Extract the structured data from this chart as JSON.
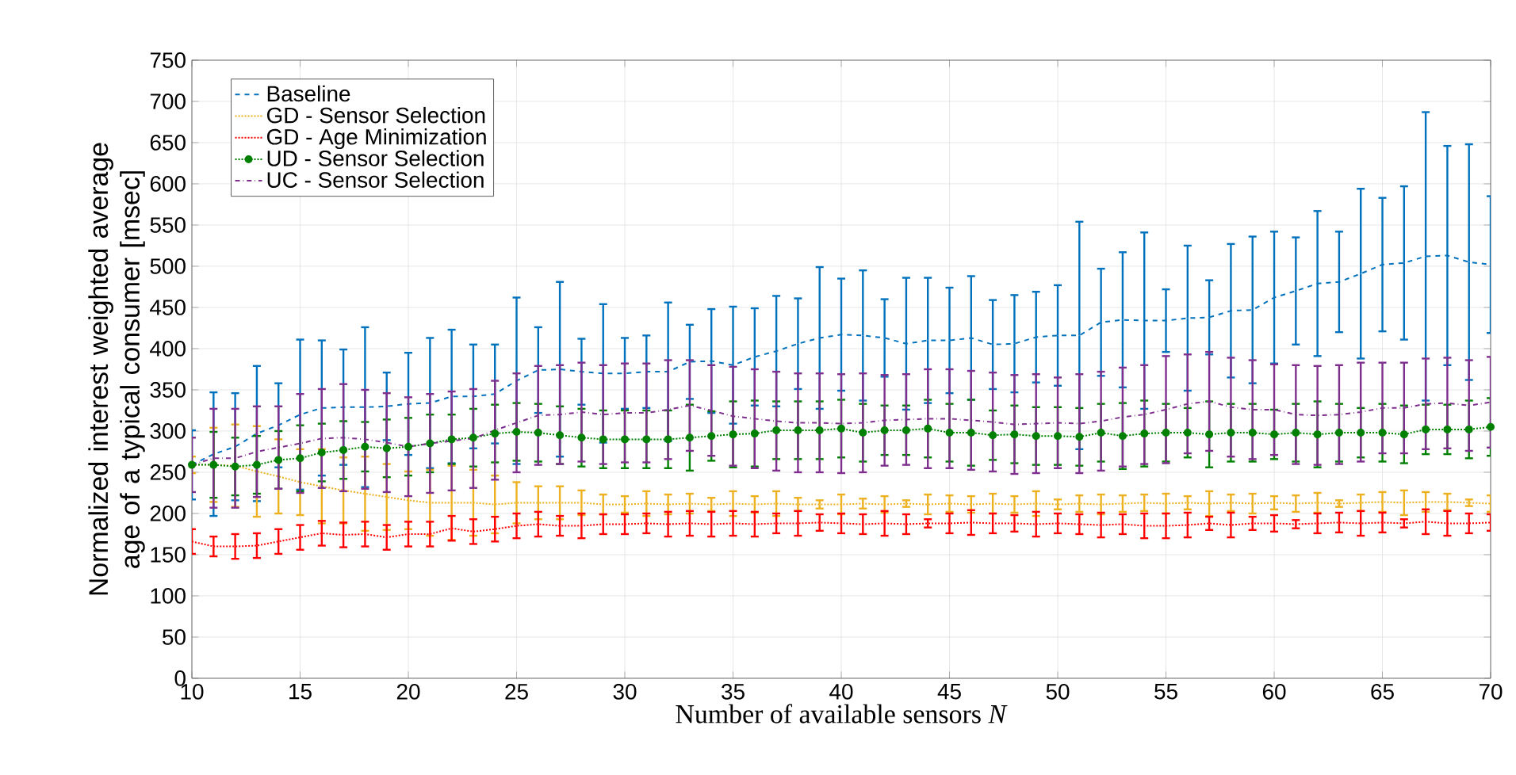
{
  "chart_data": {
    "type": "line",
    "xlabel": "Number of available sensors *N*",
    "ylabel": "Normalized interest weighted average age of a typical consumer [msec]",
    "x": [
      10,
      11,
      12,
      13,
      14,
      15,
      16,
      17,
      18,
      19,
      20,
      21,
      22,
      23,
      24,
      25,
      26,
      27,
      28,
      29,
      30,
      31,
      32,
      33,
      34,
      35,
      36,
      37,
      38,
      39,
      40,
      41,
      42,
      43,
      44,
      45,
      46,
      47,
      48,
      49,
      50,
      51,
      52,
      53,
      54,
      55,
      56,
      57,
      58,
      59,
      60,
      61,
      62,
      63,
      64,
      65,
      66,
      67,
      68,
      69,
      70
    ],
    "xlim": [
      10,
      70
    ],
    "xticks": [
      10,
      15,
      20,
      25,
      30,
      35,
      40,
      45,
      50,
      55,
      60,
      65,
      70
    ],
    "ylim": [
      0,
      750
    ],
    "yticks": [
      0,
      50,
      100,
      150,
      200,
      250,
      300,
      350,
      400,
      450,
      500,
      550,
      600,
      650,
      700,
      750
    ],
    "grid": true,
    "legend": "top left",
    "marker": "none",
    "series": [
      {
        "name": "Baseline",
        "color": "#0072bd",
        "line_style": "dashed",
        "values": [
          259,
          272,
          281,
          297,
          307,
          320,
          328,
          329,
          329,
          330,
          333,
          334,
          342,
          342,
          345,
          361,
          374,
          375,
          372,
          370,
          370,
          372,
          372,
          384,
          385,
          380,
          390,
          397,
          406,
          413,
          417,
          416,
          413,
          406,
          410,
          410,
          413,
          405,
          406,
          414,
          416,
          416,
          432,
          435,
          434,
          434,
          437,
          438,
          446,
          447,
          462,
          470,
          479,
          481,
          491,
          502,
          504,
          512,
          513,
          505,
          502
        ],
        "errors": [
          42,
          75,
          65,
          82,
          51,
          91,
          82,
          70,
          97,
          41,
          62,
          79,
          81,
          63,
          60,
          101,
          52,
          106,
          40,
          84,
          43,
          44,
          84,
          45,
          63,
          71,
          59,
          67,
          55,
          86,
          68,
          79,
          47,
          80,
          76,
          64,
          75,
          54,
          59,
          55,
          61,
          138,
          65,
          82,
          107,
          38,
          88,
          45,
          81,
          89,
          80,
          65,
          88,
          61,
          103,
          81,
          93,
          175,
          133,
          143,
          83
        ]
      },
      {
        "name": "GD - Sensor Selection",
        "color": "#edb120",
        "line_style": "dotted",
        "values": [
          259,
          259,
          258,
          251,
          245,
          238,
          233,
          228,
          224,
          220,
          216,
          213,
          213,
          213,
          211,
          213,
          213,
          213,
          213,
          211,
          211,
          212,
          211,
          212,
          211,
          212,
          211,
          212,
          211,
          211,
          211,
          212,
          211,
          212,
          211,
          212,
          211,
          212,
          211,
          212,
          211,
          212,
          211,
          212,
          213,
          212,
          213,
          212,
          213,
          212,
          213,
          212,
          213,
          212,
          213,
          214,
          213,
          214,
          214,
          213,
          212
        ],
        "errors": [
          10,
          45,
          50,
          55,
          45,
          40,
          45,
          40,
          45,
          40,
          35,
          40,
          45,
          40,
          35,
          25,
          20,
          20,
          15,
          12,
          10,
          15,
          12,
          12,
          8,
          15,
          10,
          15,
          8,
          5,
          12,
          6,
          10,
          4,
          12,
          10,
          10,
          12,
          10,
          15,
          6,
          10,
          12,
          10,
          10,
          12,
          8,
          15,
          10,
          12,
          8,
          10,
          12,
          4,
          10,
          12,
          15,
          12,
          10,
          4,
          10
        ]
      },
      {
        "name": "GD - Age Minimization",
        "color": "#ff0000",
        "line_style": "dotted",
        "values": [
          166,
          160,
          160,
          161,
          166,
          171,
          176,
          174,
          175,
          171,
          175,
          175,
          182,
          178,
          181,
          185,
          187,
          185,
          185,
          187,
          187,
          188,
          187,
          188,
          187,
          188,
          187,
          188,
          188,
          189,
          188,
          187,
          188,
          187,
          188,
          188,
          189,
          188,
          188,
          187,
          188,
          187,
          186,
          187,
          185,
          185,
          186,
          188,
          186,
          188,
          188,
          187,
          188,
          189,
          188,
          189,
          188,
          190,
          188,
          188,
          189
        ],
        "errors": [
          15,
          12,
          15,
          15,
          15,
          15,
          15,
          15,
          15,
          15,
          15,
          15,
          15,
          15,
          15,
          15,
          15,
          12,
          15,
          12,
          12,
          12,
          15,
          15,
          15,
          15,
          15,
          12,
          15,
          10,
          12,
          12,
          15,
          12,
          5,
          12,
          15,
          12,
          10,
          15,
          12,
          12,
          15,
          12,
          15,
          15,
          15,
          8,
          15,
          8,
          10,
          5,
          12,
          12,
          15,
          12,
          5,
          15,
          15,
          12,
          10
        ]
      },
      {
        "name": "UD - Sensor Selection",
        "color": "#008000",
        "line_style": "dotted",
        "marker": "circle",
        "values": [
          259,
          259,
          257,
          259,
          265,
          267,
          274,
          277,
          281,
          279,
          281,
          285,
          290,
          292,
          297,
          299,
          298,
          295,
          292,
          290,
          290,
          290,
          290,
          292,
          294,
          296,
          297,
          301,
          301,
          301,
          303,
          298,
          301,
          301,
          303,
          298,
          298,
          295,
          296,
          294,
          294,
          293,
          298,
          294,
          297,
          298,
          298,
          296,
          298,
          298,
          296,
          298,
          296,
          298,
          298,
          298,
          296,
          302,
          302,
          302,
          305
        ],
        "errors": [
          null,
          40,
          35,
          35,
          35,
          40,
          35,
          35,
          30,
          35,
          35,
          35,
          30,
          35,
          35,
          35,
          35,
          35,
          35,
          35,
          35,
          35,
          35,
          40,
          30,
          40,
          40,
          35,
          35,
          35,
          35,
          35,
          30,
          30,
          35,
          35,
          40,
          30,
          35,
          35,
          35,
          35,
          35,
          40,
          40,
          35,
          30,
          40,
          35,
          35,
          30,
          35,
          40,
          35,
          30,
          35,
          35,
          30,
          30,
          35,
          35
        ]
      },
      {
        "name": "UC - Sensor Selection",
        "color": "#7e2f8e",
        "line_style": "dashdot",
        "values": [
          259,
          267,
          267,
          275,
          280,
          285,
          291,
          292,
          290,
          286,
          281,
          285,
          288,
          291,
          301,
          310,
          319,
          320,
          323,
          320,
          322,
          322,
          326,
          331,
          325,
          318,
          315,
          312,
          310,
          310,
          309,
          310,
          313,
          314,
          315,
          315,
          313,
          311,
          308,
          309,
          310,
          309,
          312,
          317,
          320,
          326,
          333,
          336,
          329,
          326,
          326,
          320,
          319,
          320,
          323,
          328,
          328,
          333,
          334,
          331,
          335
        ],
        "errors": [
          33,
          60,
          60,
          55,
          50,
          60,
          60,
          65,
          60,
          60,
          60,
          60,
          60,
          60,
          60,
          60,
          60,
          60,
          60,
          60,
          60,
          60,
          60,
          55,
          55,
          60,
          60,
          60,
          60,
          60,
          60,
          60,
          55,
          55,
          60,
          60,
          60,
          60,
          60,
          60,
          55,
          60,
          60,
          60,
          60,
          65,
          60,
          60,
          60,
          60,
          55,
          60,
          60,
          60,
          60,
          55,
          55,
          55,
          55,
          55,
          55
        ]
      }
    ]
  }
}
